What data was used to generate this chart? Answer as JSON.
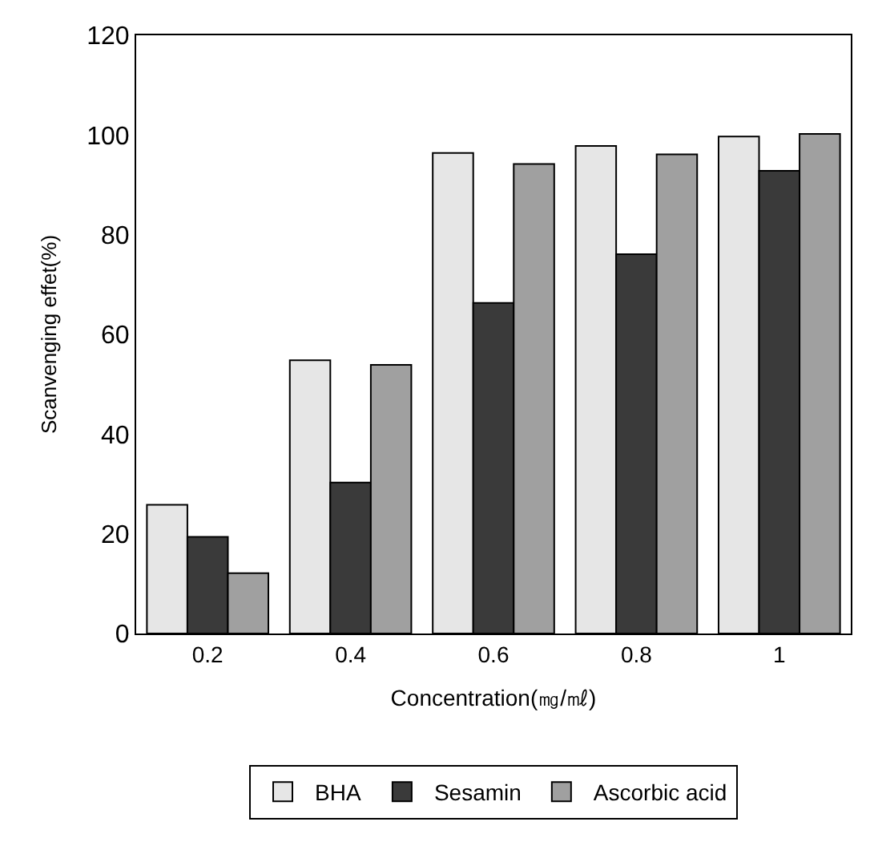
{
  "chart_data": {
    "type": "bar",
    "xlabel": "Concentration(㎎/㎖)",
    "ylabel": "Scanvenging effet(%)",
    "categories": [
      "0.2",
      "0.4",
      "0.6",
      "0.8",
      "1"
    ],
    "series": [
      {
        "name": "BHA",
        "color": "#e6e6e6",
        "values": [
          25.8,
          54.8,
          96.4,
          97.8,
          99.7
        ]
      },
      {
        "name": "Sesamin",
        "color": "#3a3a3a",
        "values": [
          19.4,
          30.3,
          66.3,
          76.1,
          92.8
        ]
      },
      {
        "name": "Ascorbic acid",
        "color": "#a0a0a0",
        "values": [
          12.1,
          53.9,
          94.2,
          96.1,
          100.2
        ]
      }
    ],
    "ylim": [
      0,
      120
    ],
    "yticks": [
      0,
      20,
      40,
      60,
      80,
      100,
      120
    ],
    "legend": "bottom"
  }
}
